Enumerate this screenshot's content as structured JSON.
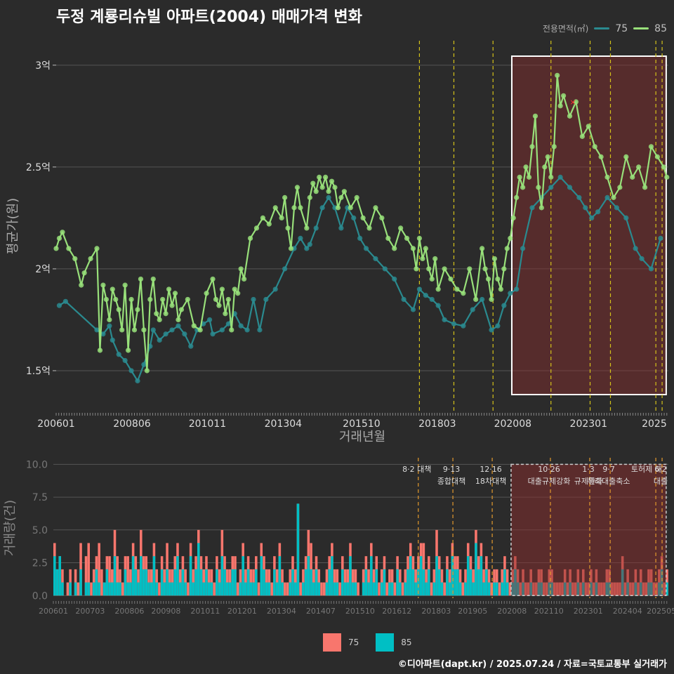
{
  "title": "두정 계룡리슈빌 아파트(2004) 매매가격 변화",
  "legend": {
    "title": "전용면적(㎡)",
    "items": [
      {
        "name": "75",
        "color": "#2a8a8f"
      },
      {
        "name": "85",
        "color": "#98e07a"
      }
    ]
  },
  "bar_legend": {
    "items": [
      {
        "name": "75",
        "color": "#f8766d"
      },
      {
        "name": "85",
        "color": "#00bfc4"
      }
    ]
  },
  "footer": "©디아파트(dapt.kr) / 2025.07.24 / 자료=국토교통부 실거래가",
  "colors": {
    "background": "#2b2b2b",
    "grid": "#555555",
    "policy_line": "#d4c21a",
    "policy_line_bottom": "#e39a2d",
    "highlight": "#8b2e2e",
    "text": "#cccccc",
    "marker": "#ff3030"
  },
  "chart_data": [
    {
      "type": "line",
      "title": "두정 계룡리슈빌 아파트(2004) 매매가격 변화",
      "xlabel": "거래년월",
      "ylabel": "평균가(원)",
      "x_tick_labels": [
        "200601",
        "200806",
        "201011",
        "201304",
        "201510",
        "201803",
        "202008",
        "202301",
        "2025"
      ],
      "y_tick_labels": [
        "1.5억",
        "2억",
        "2.5억",
        "3억"
      ],
      "y_ticks": [
        1.5,
        2.0,
        2.5,
        3.0
      ],
      "ylim": [
        1.3,
        3.12
      ],
      "xlim": [
        2006.0,
        2025.55
      ],
      "grid": true,
      "legend_position": "top-right",
      "policy_lines": [
        2017.6,
        2018.7,
        2019.95,
        2021.8,
        2023.05,
        2023.7,
        2025.15,
        2025.35
      ],
      "highlight_range": [
        2020.55,
        2025.48
      ],
      "series": [
        {
          "name": "75",
          "x": [
            2006.1,
            2006.3,
            2007.3,
            2007.5,
            2007.7,
            2007.8,
            2008.0,
            2008.2,
            2008.4,
            2008.6,
            2008.8,
            2009.0,
            2009.1,
            2009.3,
            2009.5,
            2009.7,
            2009.9,
            2010.1,
            2010.3,
            2010.5,
            2010.7,
            2010.9,
            2011.0,
            2011.3,
            2011.5,
            2011.7,
            2011.9,
            2012.1,
            2012.3,
            2012.5,
            2012.7,
            2013.0,
            2013.3,
            2013.6,
            2013.8,
            2014.0,
            2014.1,
            2014.3,
            2014.5,
            2014.7,
            2014.9,
            2015.1,
            2015.3,
            2015.5,
            2015.7,
            2015.9,
            2016.2,
            2016.5,
            2016.8,
            2017.1,
            2017.4,
            2017.6,
            2017.8,
            2018.0,
            2018.2,
            2018.4,
            2018.7,
            2019.0,
            2019.3,
            2019.6,
            2019.9,
            2020.1,
            2020.3,
            2020.5,
            2020.7,
            2020.9,
            2021.2,
            2021.5,
            2021.8,
            2022.1,
            2022.4,
            2022.7,
            2022.9,
            2023.1,
            2023.3,
            2023.6,
            2023.9,
            2024.2,
            2024.5,
            2024.7,
            2025.0,
            2025.3
          ],
          "y": [
            1.82,
            1.84,
            1.7,
            1.68,
            1.72,
            1.65,
            1.58,
            1.55,
            1.5,
            1.45,
            1.53,
            1.62,
            1.7,
            1.65,
            1.68,
            1.7,
            1.72,
            1.68,
            1.62,
            1.7,
            1.73,
            1.75,
            1.68,
            1.7,
            1.73,
            1.78,
            1.72,
            1.7,
            1.85,
            1.7,
            1.85,
            1.9,
            2.0,
            2.1,
            2.15,
            2.1,
            2.12,
            2.2,
            2.3,
            2.35,
            2.3,
            2.2,
            2.3,
            2.25,
            2.15,
            2.1,
            2.05,
            2.0,
            1.95,
            1.85,
            1.8,
            1.9,
            1.87,
            1.85,
            1.82,
            1.75,
            1.73,
            1.72,
            1.8,
            1.85,
            1.7,
            1.72,
            1.82,
            1.88,
            1.9,
            2.1,
            2.3,
            2.35,
            2.4,
            2.45,
            2.4,
            2.35,
            2.3,
            2.25,
            2.28,
            2.35,
            2.3,
            2.25,
            2.1,
            2.05,
            2.0,
            2.15
          ]
        },
        {
          "name": "85",
          "x": [
            2006.0,
            2006.1,
            2006.2,
            2006.4,
            2006.6,
            2006.8,
            2006.9,
            2007.1,
            2007.3,
            2007.4,
            2007.5,
            2007.6,
            2007.7,
            2007.8,
            2007.9,
            2008.0,
            2008.1,
            2008.2,
            2008.3,
            2008.4,
            2008.5,
            2008.6,
            2008.7,
            2008.8,
            2008.9,
            2009.0,
            2009.1,
            2009.2,
            2009.3,
            2009.4,
            2009.5,
            2009.6,
            2009.7,
            2009.8,
            2009.9,
            2010.0,
            2010.2,
            2010.4,
            2010.6,
            2010.8,
            2011.0,
            2011.1,
            2011.2,
            2011.3,
            2011.4,
            2011.5,
            2011.6,
            2011.7,
            2011.8,
            2011.9,
            2012.0,
            2012.2,
            2012.4,
            2012.6,
            2012.8,
            2013.0,
            2013.2,
            2013.3,
            2013.4,
            2013.5,
            2013.6,
            2013.7,
            2013.8,
            2014.0,
            2014.1,
            2014.2,
            2014.3,
            2014.4,
            2014.5,
            2014.6,
            2014.7,
            2014.8,
            2014.9,
            2015.0,
            2015.1,
            2015.2,
            2015.4,
            2015.6,
            2015.8,
            2016.0,
            2016.2,
            2016.4,
            2016.6,
            2016.8,
            2017.0,
            2017.2,
            2017.4,
            2017.5,
            2017.6,
            2017.7,
            2017.8,
            2017.9,
            2018.0,
            2018.1,
            2018.2,
            2018.4,
            2018.6,
            2018.8,
            2019.0,
            2019.2,
            2019.4,
            2019.6,
            2019.7,
            2019.8,
            2019.9,
            2020.0,
            2020.1,
            2020.2,
            2020.3,
            2020.4,
            2020.5,
            2020.6,
            2020.7,
            2020.8,
            2020.9,
            2021.0,
            2021.1,
            2021.2,
            2021.3,
            2021.4,
            2021.5,
            2021.6,
            2021.7,
            2021.8,
            2021.9,
            2022.0,
            2022.1,
            2022.2,
            2022.4,
            2022.6,
            2022.8,
            2023.0,
            2023.2,
            2023.4,
            2023.6,
            2023.8,
            2024.0,
            2024.2,
            2024.4,
            2024.6,
            2024.8,
            2025.0,
            2025.2,
            2025.4,
            2025.5
          ],
          "y": [
            2.1,
            2.15,
            2.18,
            2.1,
            2.05,
            1.92,
            1.98,
            2.05,
            2.1,
            1.6,
            1.92,
            1.85,
            1.75,
            1.9,
            1.85,
            1.8,
            1.7,
            1.92,
            1.6,
            1.85,
            1.7,
            1.8,
            1.95,
            1.7,
            1.5,
            1.85,
            1.95,
            1.78,
            1.75,
            1.85,
            1.78,
            1.9,
            1.82,
            1.88,
            1.75,
            1.8,
            1.85,
            1.72,
            1.7,
            1.88,
            1.95,
            1.85,
            1.82,
            1.9,
            1.78,
            1.85,
            1.7,
            1.9,
            1.88,
            2.0,
            1.95,
            2.15,
            2.2,
            2.25,
            2.22,
            2.3,
            2.25,
            2.35,
            2.2,
            2.1,
            2.3,
            2.4,
            2.3,
            2.2,
            2.35,
            2.42,
            2.38,
            2.45,
            2.4,
            2.45,
            2.38,
            2.43,
            2.4,
            2.3,
            2.35,
            2.38,
            2.3,
            2.35,
            2.25,
            2.2,
            2.3,
            2.25,
            2.15,
            2.1,
            2.2,
            2.15,
            2.1,
            2.0,
            2.15,
            2.05,
            2.1,
            2.0,
            1.95,
            2.05,
            1.9,
            2.0,
            1.95,
            1.9,
            1.88,
            2.0,
            1.85,
            2.1,
            2.0,
            1.95,
            1.85,
            2.05,
            1.95,
            1.9,
            2.0,
            2.1,
            2.15,
            2.25,
            2.35,
            2.45,
            2.4,
            2.5,
            2.45,
            2.6,
            2.75,
            2.4,
            2.3,
            2.5,
            2.55,
            2.45,
            2.6,
            2.95,
            2.8,
            2.85,
            2.75,
            2.82,
            2.65,
            2.7,
            2.6,
            2.55,
            2.45,
            2.35,
            2.4,
            2.55,
            2.45,
            2.5,
            2.4,
            2.6,
            2.55,
            2.5,
            2.45
          ]
        }
      ]
    },
    {
      "type": "bar",
      "xlabel": "",
      "ylabel": "거래량(건)",
      "x_tick_labels": [
        "200601",
        "200703",
        "200806",
        "200908",
        "201011",
        "201201",
        "201304",
        "201407",
        "201510",
        "201612",
        "201803",
        "201905",
        "202008",
        "202110",
        "202301",
        "202404",
        "202505"
      ],
      "y_tick_labels": [
        "0.0",
        "2.5",
        "5.0",
        "7.5",
        "10.0"
      ],
      "y_ticks": [
        0,
        2.5,
        5,
        7.5,
        10
      ],
      "ylim": [
        -0.2,
        10.5
      ],
      "xlim": [
        2006.0,
        2025.55
      ],
      "grid": true,
      "legend_position": "bottom",
      "highlight_range": [
        2020.55,
        2025.48
      ],
      "policy_lines": [
        2017.6,
        2018.7,
        2019.95,
        2021.8,
        2023.05,
        2023.7,
        2025.15,
        2025.35
      ],
      "annotations": [
        {
          "x": 2017.6,
          "lines": [
            "8·2 대책"
          ]
        },
        {
          "x": 2018.7,
          "lines": [
            "9·13",
            "종합대책"
          ]
        },
        {
          "x": 2019.95,
          "lines": [
            "12·16",
            "18차대책"
          ]
        },
        {
          "x": 2021.8,
          "lines": [
            "10·26",
            "대출규제강화"
          ]
        },
        {
          "x": 2023.05,
          "lines": [
            "1·3",
            "규제완화"
          ]
        },
        {
          "x": 2023.7,
          "lines": [
            "9·7",
            "특례대출축소"
          ]
        },
        {
          "x": 2024.9,
          "lines": [
            "토허제 해"
          ]
        },
        {
          "x": 2025.35,
          "lines": [
            "6·2",
            "대출"
          ]
        }
      ],
      "series": [
        {
          "name": "75",
          "values": [
            4,
            1,
            0,
            2,
            0,
            1,
            2,
            0,
            2,
            1,
            4,
            0,
            3,
            4,
            1,
            2,
            3,
            4,
            2,
            1,
            3,
            3,
            2,
            5,
            3,
            2,
            1,
            3,
            3,
            2,
            4,
            3,
            2,
            5,
            3,
            3,
            2,
            2,
            4,
            2,
            1,
            3,
            2,
            4,
            2,
            2,
            3,
            4,
            2,
            3,
            2,
            1,
            4,
            2,
            3,
            5,
            3,
            2,
            3,
            2,
            2,
            1,
            3,
            2,
            5,
            3,
            2,
            2,
            3,
            3,
            1,
            2,
            4,
            2,
            3,
            2,
            2,
            3,
            1,
            4,
            3,
            2,
            2,
            1,
            3,
            2,
            4,
            2,
            1,
            1,
            2,
            3,
            2,
            5,
            1,
            2,
            3,
            5,
            4,
            2,
            3,
            2,
            1,
            1,
            2,
            3,
            4,
            2,
            2,
            1,
            3,
            2,
            2,
            4,
            2,
            2,
            1,
            0,
            2,
            3,
            2,
            4,
            2,
            3,
            1,
            2,
            3,
            1,
            2,
            2,
            1,
            3,
            2,
            1,
            2,
            3,
            4,
            3,
            2,
            3,
            4,
            4,
            2,
            3,
            1,
            2,
            5,
            3,
            2,
            1,
            3,
            2,
            4,
            3,
            3,
            2,
            1,
            2,
            4,
            3,
            2,
            5,
            3,
            4,
            2,
            3,
            2,
            1,
            2,
            2,
            1,
            2,
            3,
            2,
            1,
            2,
            3,
            2,
            1,
            2,
            1,
            1,
            2,
            1,
            1,
            2,
            2,
            1,
            1,
            2,
            2,
            1,
            1,
            1,
            1,
            2,
            1,
            2,
            1,
            1,
            2,
            1,
            2,
            1,
            1,
            2,
            1,
            2,
            1,
            1,
            1,
            2,
            2,
            1,
            1,
            1,
            1,
            3,
            1,
            2,
            1,
            1,
            2,
            1,
            2,
            1,
            1,
            2,
            2,
            1,
            1,
            2,
            3,
            1,
            2
          ]
        },
        {
          "name": "85",
          "values": [
            3,
            2,
            3,
            1,
            0,
            0,
            1,
            0,
            1,
            0,
            2,
            0,
            1,
            1,
            0,
            1,
            2,
            1,
            0,
            1,
            2,
            1,
            1,
            3,
            1,
            1,
            0,
            2,
            1,
            1,
            3,
            2,
            1,
            3,
            2,
            2,
            1,
            1,
            3,
            1,
            0,
            2,
            1,
            2,
            1,
            1,
            2,
            3,
            1,
            2,
            1,
            0,
            3,
            1,
            2,
            4,
            2,
            1,
            2,
            1,
            1,
            0,
            2,
            1,
            3,
            2,
            1,
            1,
            2,
            2,
            0,
            1,
            3,
            1,
            2,
            1,
            1,
            2,
            0,
            3,
            2,
            1,
            1,
            0,
            2,
            1,
            3,
            1,
            0,
            0,
            1,
            2,
            1,
            7,
            0,
            1,
            2,
            3,
            2,
            1,
            2,
            1,
            0,
            0,
            1,
            2,
            3,
            1,
            1,
            0,
            2,
            1,
            1,
            3,
            1,
            1,
            0,
            0,
            1,
            2,
            1,
            3,
            1,
            2,
            0,
            1,
            2,
            0,
            1,
            1,
            0,
            2,
            1,
            0,
            1,
            2,
            3,
            2,
            1,
            2,
            3,
            2,
            1,
            2,
            0,
            1,
            3,
            2,
            1,
            0,
            2,
            1,
            3,
            2,
            2,
            1,
            0,
            1,
            3,
            2,
            1,
            4,
            2,
            3,
            1,
            2,
            1,
            0,
            1,
            1,
            0,
            1,
            2,
            1,
            0,
            1,
            2,
            1,
            0,
            1,
            0,
            0,
            1,
            0,
            0,
            1,
            1,
            0,
            0,
            1,
            1,
            0,
            0,
            0,
            0,
            1,
            0,
            1,
            0,
            0,
            1,
            0,
            1,
            0,
            0,
            1,
            0,
            1,
            0,
            0,
            0,
            1,
            1,
            0,
            0,
            0,
            0,
            2,
            0,
            1,
            0,
            0,
            1,
            0,
            1,
            0,
            0,
            1,
            1,
            0,
            0,
            1,
            2,
            0,
            1
          ]
        }
      ]
    }
  ]
}
